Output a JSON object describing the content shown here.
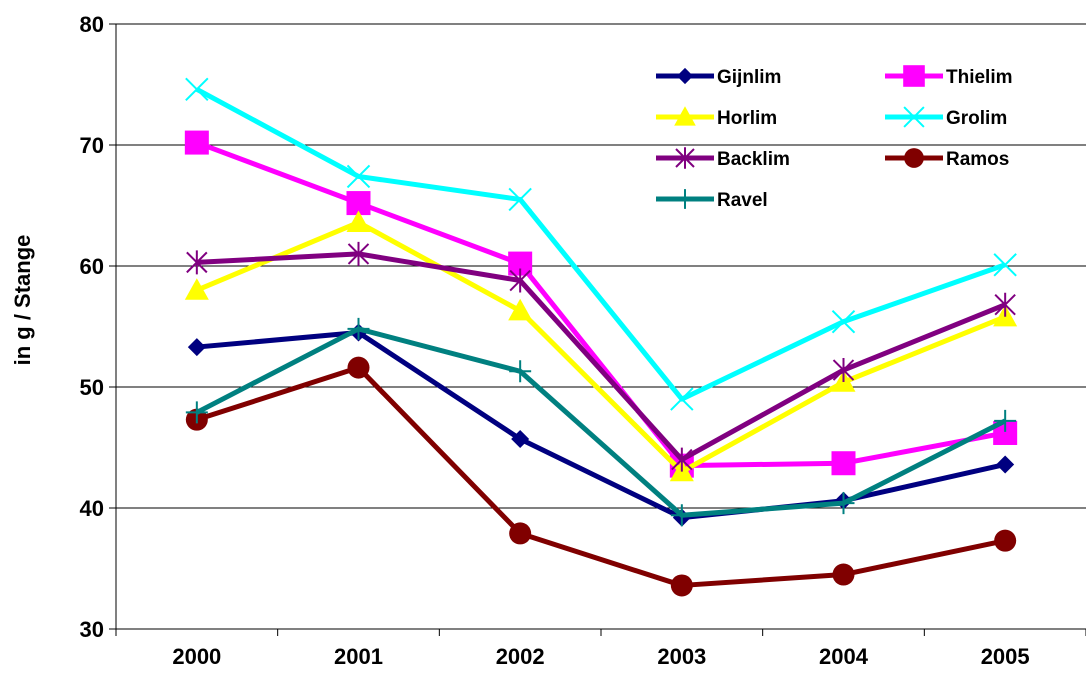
{
  "chart_data": {
    "type": "line",
    "title": "",
    "xlabel": "",
    "ylabel": "in g / Stange",
    "categories": [
      "2000",
      "2001",
      "2002",
      "2003",
      "2004",
      "2005"
    ],
    "ylim": [
      30,
      80
    ],
    "yticks": [
      30,
      40,
      50,
      60,
      70,
      80
    ],
    "grid": "horizontal",
    "legend_position": "top-right",
    "series": [
      {
        "name": "Gijnlim",
        "color": "#000080",
        "marker": "diamond",
        "values": [
          53.3,
          54.5,
          45.7,
          39.2,
          40.6,
          43.6
        ]
      },
      {
        "name": "Thielim",
        "color": "#FF00FF",
        "marker": "square",
        "values": [
          70.2,
          65.2,
          60.2,
          43.5,
          43.7,
          46.2
        ]
      },
      {
        "name": "Horlim",
        "color": "#FFFF00",
        "marker": "triangle",
        "values": [
          58.0,
          63.6,
          56.3,
          43.0,
          50.4,
          55.8
        ]
      },
      {
        "name": "Grolim",
        "color": "#00FFFF",
        "marker": "x",
        "values": [
          74.6,
          67.4,
          65.5,
          49.0,
          55.4,
          60.1
        ]
      },
      {
        "name": "Backlim",
        "color": "#800080",
        "marker": "star",
        "values": [
          60.3,
          61.0,
          58.8,
          44.0,
          51.4,
          56.8
        ]
      },
      {
        "name": "Ramos",
        "color": "#800000",
        "marker": "circle",
        "values": [
          47.3,
          51.6,
          37.9,
          33.6,
          34.5,
          37.3
        ]
      },
      {
        "name": "Ravel",
        "color": "#008080",
        "marker": "plus",
        "values": [
          47.9,
          54.8,
          51.3,
          39.4,
          40.4,
          47.2
        ]
      }
    ]
  }
}
